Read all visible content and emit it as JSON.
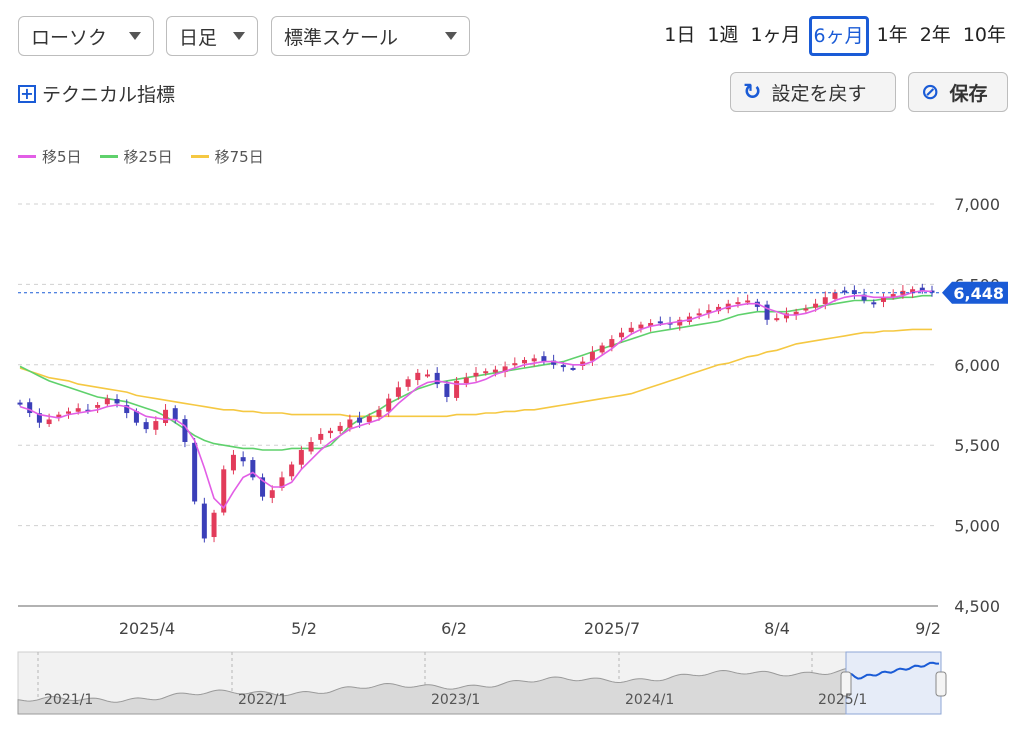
{
  "controls": {
    "chart_type": "ローソク",
    "interval": "日足",
    "scale": "標準スケール",
    "technical_label": "テクニカル指標",
    "reset_label": "設定を戻す",
    "save_label": "保存"
  },
  "periods": [
    "1日",
    "1週",
    "1ヶ月",
    "6ヶ月",
    "1年",
    "2年",
    "10年"
  ],
  "active_period": "6ヶ月",
  "legend": [
    {
      "label": "移5日",
      "color": "#e25ee6"
    },
    {
      "label": "移25日",
      "color": "#5fd16c"
    },
    {
      "label": "移75日",
      "color": "#f5c842"
    }
  ],
  "chart_data": {
    "type": "candlestick",
    "y_ticks": [
      "7,000",
      "6,500",
      "6,000",
      "5,500",
      "5,000",
      "4,500"
    ],
    "ylim": [
      4500,
      7000
    ],
    "x_ticks": [
      "2025/4",
      "5/2",
      "6/2",
      "2025/7",
      "8/4",
      "9/2"
    ],
    "last_price": "6,448",
    "last_value": 6448,
    "colors": {
      "up": "#e23b5a",
      "down": "#3b3fb8",
      "last": "#1a5bd6"
    },
    "close_series": [
      5760,
      5700,
      5640,
      5660,
      5690,
      5710,
      5730,
      5720,
      5750,
      5790,
      5760,
      5700,
      5640,
      5600,
      5650,
      5720,
      5660,
      5520,
      5150,
      4920,
      5080,
      5350,
      5440,
      5400,
      5300,
      5180,
      5220,
      5300,
      5380,
      5470,
      5520,
      5570,
      5590,
      5620,
      5660,
      5640,
      5680,
      5720,
      5790,
      5860,
      5910,
      5950,
      5940,
      5880,
      5800,
      5900,
      5920,
      5950,
      5960,
      5970,
      5990,
      6010,
      6030,
      6040,
      6020,
      6000,
      5990,
      5980,
      6020,
      6080,
      6120,
      6160,
      6200,
      6230,
      6250,
      6260,
      6260,
      6250,
      6280,
      6300,
      6320,
      6340,
      6360,
      6380,
      6390,
      6400,
      6360,
      6280,
      6290,
      6320,
      6330,
      6350,
      6380,
      6420,
      6450,
      6460,
      6440,
      6400,
      6380,
      6420,
      6440,
      6460,
      6470,
      6460,
      6448
    ],
    "ma5": [
      5740,
      5720,
      5690,
      5680,
      5670,
      5690,
      5700,
      5710,
      5720,
      5740,
      5750,
      5740,
      5710,
      5680,
      5670,
      5660,
      5660,
      5620,
      5530,
      5360,
      5170,
      5110,
      5210,
      5300,
      5330,
      5280,
      5240,
      5240,
      5270,
      5350,
      5410,
      5470,
      5520,
      5560,
      5600,
      5620,
      5640,
      5660,
      5700,
      5760,
      5810,
      5860,
      5890,
      5900,
      5890,
      5880,
      5880,
      5890,
      5910,
      5940,
      5960,
      5980,
      6000,
      6010,
      6020,
      6020,
      6010,
      6000,
      6000,
      6020,
      6060,
      6100,
      6150,
      6190,
      6220,
      6240,
      6250,
      6260,
      6270,
      6280,
      6300,
      6320,
      6340,
      6360,
      6370,
      6380,
      6380,
      6350,
      6330,
      6310,
      6310,
      6320,
      6340,
      6370,
      6400,
      6420,
      6430,
      6430,
      6420,
      6420,
      6420,
      6430,
      6450,
      6460,
      6455
    ],
    "ma25": [
      5990,
      5960,
      5930,
      5900,
      5880,
      5860,
      5840,
      5820,
      5800,
      5790,
      5780,
      5770,
      5750,
      5730,
      5710,
      5680,
      5640,
      5600,
      5560,
      5530,
      5510,
      5500,
      5490,
      5480,
      5480,
      5470,
      5470,
      5470,
      5480,
      5480,
      5480,
      5480,
      5500,
      5560,
      5620,
      5660,
      5690,
      5720,
      5760,
      5790,
      5820,
      5850,
      5870,
      5890,
      5900,
      5910,
      5920,
      5930,
      5940,
      5950,
      5960,
      5970,
      5980,
      5990,
      6000,
      6010,
      6020,
      6040,
      6060,
      6080,
      6100,
      6120,
      6140,
      6160,
      6180,
      6200,
      6210,
      6220,
      6230,
      6240,
      6250,
      6260,
      6270,
      6290,
      6310,
      6320,
      6330,
      6330,
      6330,
      6330,
      6340,
      6350,
      6360,
      6370,
      6380,
      6390,
      6400,
      6400,
      6400,
      6410,
      6410,
      6420,
      6420,
      6430,
      6430
    ],
    "ma75": [
      5980,
      5960,
      5940,
      5920,
      5910,
      5900,
      5880,
      5870,
      5860,
      5850,
      5840,
      5830,
      5810,
      5800,
      5790,
      5780,
      5770,
      5760,
      5750,
      5740,
      5730,
      5720,
      5720,
      5710,
      5710,
      5700,
      5700,
      5700,
      5690,
      5690,
      5690,
      5690,
      5690,
      5690,
      5680,
      5680,
      5680,
      5680,
      5680,
      5680,
      5680,
      5680,
      5680,
      5680,
      5680,
      5690,
      5690,
      5690,
      5700,
      5700,
      5710,
      5710,
      5720,
      5720,
      5730,
      5740,
      5750,
      5760,
      5770,
      5780,
      5790,
      5800,
      5810,
      5820,
      5840,
      5860,
      5880,
      5900,
      5920,
      5940,
      5960,
      5980,
      6000,
      6010,
      6030,
      6050,
      6060,
      6080,
      6090,
      6110,
      6130,
      6140,
      6150,
      6160,
      6170,
      6180,
      6190,
      6200,
      6200,
      6210,
      6210,
      6215,
      6220,
      6220,
      6220
    ]
  },
  "navigator": {
    "labels": [
      "2021/1",
      "2022/1",
      "2023/1",
      "2024/1",
      "2025/1"
    ]
  }
}
